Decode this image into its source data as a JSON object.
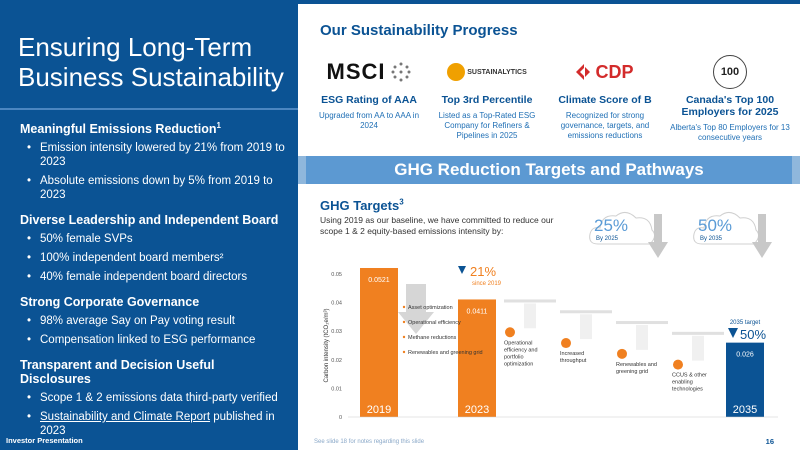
{
  "left": {
    "title": "Ensuring Long-Term Business Sustainability",
    "sections": [
      {
        "heading": "Meaningful Emissions Reduction",
        "sup": "1",
        "bullets": [
          "Emission intensity lowered by 21% from 2019 to 2023",
          "Absolute emissions down by 5% from 2019 to 2023"
        ]
      },
      {
        "heading": "Diverse Leadership and Independent Board",
        "sup": "",
        "bullets": [
          "50% female SVPs",
          "100% independent board members²",
          "40% female independent board directors"
        ]
      },
      {
        "heading": "Strong Corporate Governance",
        "sup": "",
        "bullets": [
          "98% average Say on Pay voting result",
          "Compensation linked to ESG performance"
        ]
      },
      {
        "heading": "Transparent and Decision Useful Disclosures",
        "sup": "",
        "bullets": [
          "Scope 1 & 2 emissions data third-party verified"
        ],
        "link_bullet": {
          "link": "Sustainability and Climate Report",
          "rest": " published in 2023"
        }
      }
    ],
    "footer": "Investor Presentation"
  },
  "progress": {
    "title": "Our Sustainability Progress",
    "cards": [
      {
        "logo_text": "MSCI",
        "title": "ESG Rating of AAA",
        "desc": "Upgraded from AA to AAA in 2024"
      },
      {
        "logo_text": "SUSTAINALYTICS",
        "title": "Top 3rd Percentile",
        "desc": "Listed as a Top-Rated ESG Company for Refiners & Pipelines in 2025"
      },
      {
        "logo_text": "CDP",
        "title": "Climate Score of B",
        "desc": "Recognized for strong governance, targets, and emissions reductions"
      },
      {
        "logo_text": "100",
        "title": "Canada's Top 100 Employers for 2025",
        "desc": "Alberta's Top 80 Employers for 13 consecutive years"
      }
    ]
  },
  "band": {
    "title": "GHG Reduction Targets and Pathways"
  },
  "ghg": {
    "title": "GHG Targets",
    "title_sup": "3",
    "intro": "Using 2019 as our baseline, we have committed to reduce our scope 1 & 2 equity-based emissions intensity by:",
    "targets": [
      {
        "pct": "25%",
        "by": "By 2025"
      },
      {
        "pct": "50%",
        "by": "By 2035"
      }
    ]
  },
  "chart_data": {
    "type": "bar",
    "ylabel": "Carbon intensity (tCO₂e/m³)",
    "ylim": [
      0,
      0.05
    ],
    "yticks": [
      "0",
      "0.01",
      "0.02",
      "0.03",
      "0.04",
      "0.05"
    ],
    "bars": [
      {
        "label": "2019",
        "value": 0.0521,
        "value_text": "0.0521",
        "color": "#f08020"
      },
      {
        "label": "2023",
        "value": 0.0411,
        "value_text": "0.0411",
        "color": "#f08020"
      },
      {
        "label": "2035",
        "value": 0.026,
        "value_text": "0.026",
        "color": "#0b5394"
      }
    ],
    "legend_2019": [
      "Asset optimization",
      "Operational efficiency",
      "Methane reductions",
      "Renewables and greening grid"
    ],
    "reduction_2023": {
      "pct": "21%",
      "sub": "since 2019"
    },
    "target_2035": {
      "label": "2035 target",
      "pct": "50%"
    },
    "pathway_steps": [
      {
        "label": "Operational efficiency and portfolio optimization"
      },
      {
        "label": "Increased throughput"
      },
      {
        "label": "Renewables and greening grid"
      },
      {
        "label": "CCUS & other enabling technologies"
      }
    ],
    "colors": {
      "orange": "#f08020",
      "blue": "#0b5394",
      "grey": "#c0c0c0"
    }
  },
  "footer": {
    "note": "See slide 18 for notes regarding this slide",
    "page": "16"
  }
}
